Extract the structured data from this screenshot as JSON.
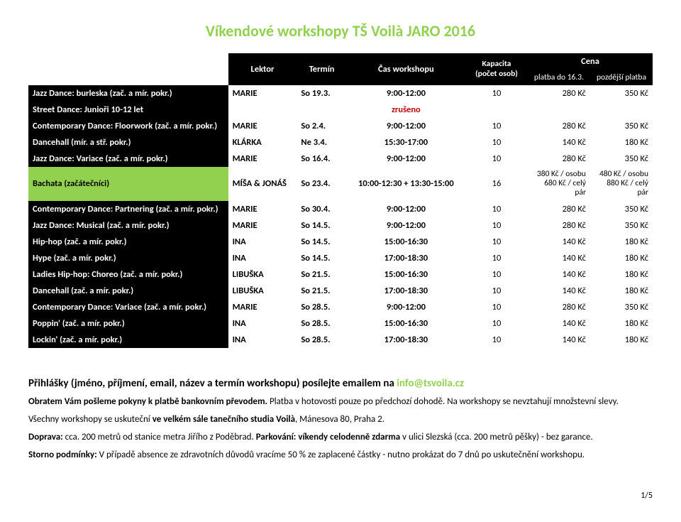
{
  "accent_color": "#92d050",
  "title": "Víkendové workshopy TŠ Voilà JARO 2016",
  "columns": {
    "lektor": "Lektor",
    "termin": "Termín",
    "cas": "Čas workshopu",
    "kapacita": "Kapacita\n(počet osob)",
    "cena": "Cena",
    "platba_do": "platba do 16.3.",
    "pozdejsi": "pozdější platba"
  },
  "rows": [
    {
      "name": "Jazz Dance: burleska (zač. a mír. pokr.)",
      "lektor": "MARIE",
      "termin": "So 19.3.",
      "cas": "9:00-12:00",
      "kap": "10",
      "p1": "280 Kč",
      "p2": "350 Kč"
    },
    {
      "name": "Street Dance: Junioři 10-12 let",
      "cas": "zrušeno",
      "cancelled": true
    },
    {
      "name": "Contemporary Dance: Floorwork (zač. a mír. pokr.)",
      "lektor": "MARIE",
      "termin": "So 2.4.",
      "cas": "9:00-12:00",
      "kap": "10",
      "p1": "280 Kč",
      "p2": "350 Kč"
    },
    {
      "name": "Dancehall (mír. a stř. pokr.)",
      "lektor": "KLÁRKA",
      "termin": "Ne 3.4.",
      "cas": "15:30-17:00",
      "kap": "10",
      "p1": "140 Kč",
      "p2": "180 Kč"
    },
    {
      "name": "Jazz Dance: Variace (zač. a mír. pokr.)",
      "lektor": "MARIE",
      "termin": "So 16.4.",
      "cas": "9:00-12:00",
      "kap": "10",
      "p1": "280 Kč",
      "p2": "350 Kč"
    },
    {
      "name": "Bachata (začátečníci)",
      "highlight": true,
      "lektor": "MÍŠA & JONÁŠ",
      "termin": "So 23.4.",
      "cas": "10:00-12:30 + 13:30-15:00",
      "kap": "16",
      "p1": "380 Kč / osobu\n680 Kč / celý pár",
      "p2": "480 Kč / osobu\n880 Kč / celý pár",
      "multiline": true
    },
    {
      "name": "Contemporary Dance: Partnering (zač. a mír. pokr.)",
      "lektor": "MARIE",
      "termin": "So 30.4.",
      "cas": "9:00-12:00",
      "kap": "10",
      "p1": "280 Kč",
      "p2": "350 Kč"
    },
    {
      "name": "Jazz Dance: Musical (zač. a mír. pokr.)",
      "lektor": "MARIE",
      "termin": "So 14.5.",
      "cas": "9:00-12:00",
      "kap": "10",
      "p1": "280 Kč",
      "p2": "350 Kč"
    },
    {
      "name": "Hip-hop (zač. a mír. pokr.)",
      "lektor": "INA",
      "termin": "So 14.5.",
      "cas": "15:00-16:30",
      "kap": "10",
      "p1": "140 Kč",
      "p2": "180 Kč"
    },
    {
      "name": "Hype (zač. a mír. pokr.)",
      "lektor": "INA",
      "termin": "So 14.5.",
      "cas": "17:00-18:30",
      "kap": "10",
      "p1": "140 Kč",
      "p2": "180 Kč"
    },
    {
      "name": "Ladies Hip-hop: Choreo (zač. a mír. pokr.)",
      "lektor": "LIBUŠKA",
      "termin": "So 21.5.",
      "cas": "15:00-16:30",
      "kap": "10",
      "p1": "140 Kč",
      "p2": "180 Kč"
    },
    {
      "name": "Dancehall (zač. a mír. pokr.)",
      "lektor": "LIBUŠKA",
      "termin": "So 21.5.",
      "cas": "17:00-18:30",
      "kap": "10",
      "p1": "140 Kč",
      "p2": "180 Kč"
    },
    {
      "name": "Contemporary Dance: Variace (zač. a mír. pokr.)",
      "lektor": "MARIE",
      "termin": "So 28.5.",
      "cas": "9:00-12:00",
      "kap": "10",
      "p1": "280 Kč",
      "p2": "350 Kč"
    },
    {
      "name": "Poppin' (zač. a mír. pokr.)",
      "lektor": "INA",
      "termin": "So 28.5.",
      "cas": "15:00-16:30",
      "kap": "10",
      "p1": "140 Kč",
      "p2": "180 Kč"
    },
    {
      "name": "Lockin' (zač. a mír. pokr.)",
      "lektor": "INA",
      "termin": "So 28.5.",
      "cas": "17:00-18:30",
      "kap": "10",
      "p1": "140 Kč",
      "p2": "180 Kč"
    }
  ],
  "footer": {
    "lead_prefix": "Přihlášky (jméno, příjmení, email, název a termín workshopu) posílejte emailem na ",
    "email": "info@tsvoila.cz",
    "p2a": "Obratem Vám pošleme pokyny k platbě bankovním převodem.",
    "p2b": " Platba v hotovosti pouze po předchozí dohodě. Na workshopy se nevztahují množstevní slevy.",
    "p3a": "Všechny workshopy se uskuteční ",
    "p3b": "ve velkém sále tanečního studia Voilà",
    "p3c": ", Mánesova 80, Praha 2.",
    "p4a": "Doprava:",
    "p4b": " cca. 200 metrů od stanice metra Jiřího z Poděbrad. ",
    "p4c": "Parkování: víkendy celodenně ",
    "p4d": "zdarma",
    "p4e": " v ulici Slezská (cca. 200 metrů pěšky) - bez garance.",
    "p5a": "Storno podmínky:",
    "p5b": " V případě absence ze zdravotních důvodů vracíme 50 % ze zaplacené částky - nutno prokázat do 7 dnů po uskutečnění workshopu."
  },
  "page": "1/5"
}
